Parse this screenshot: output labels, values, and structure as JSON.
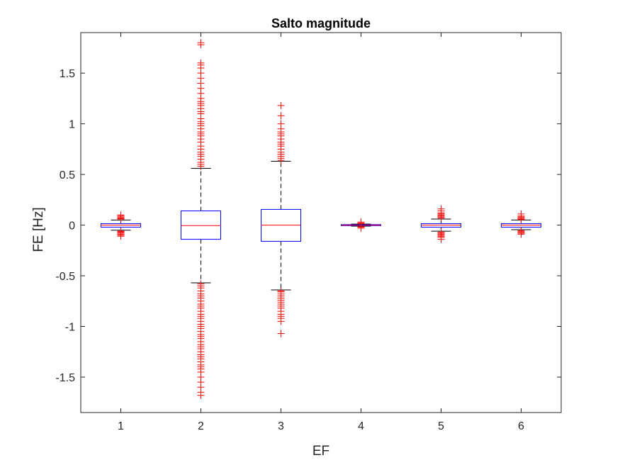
{
  "chart_data": {
    "type": "boxplot",
    "title": "Salto magnitude",
    "xlabel": "EF",
    "ylabel": "FE [Hz]",
    "categories": [
      "1",
      "2",
      "3",
      "4",
      "5",
      "6"
    ],
    "ylim": [
      -1.85,
      1.9
    ],
    "yticks": [
      -1.5,
      -1,
      -0.5,
      0,
      0.5,
      1,
      1.5
    ],
    "ytick_labels": [
      "-1.5",
      "-1",
      "-0.5",
      "0",
      "0.5",
      "1",
      "1.5"
    ],
    "grid": false,
    "colors": {
      "box": "#0000ff",
      "median": "#ff0000",
      "whisker": "#000000",
      "outlier": "#ff0000",
      "axis": "#262626"
    },
    "boxes": [
      {
        "category": "1",
        "q1": -0.02,
        "median": 0.0,
        "q3": 0.015,
        "whisker_low": -0.05,
        "whisker_high": 0.05,
        "outliers": [
          -0.11,
          -0.1,
          -0.09,
          -0.08,
          -0.07,
          -0.065,
          -0.06,
          0.06,
          0.065,
          0.07,
          0.08,
          0.09,
          0.1
        ]
      },
      {
        "category": "2",
        "q1": -0.14,
        "median": -0.005,
        "q3": 0.14,
        "whisker_low": -0.57,
        "whisker_high": 0.56,
        "outliers": [
          1.8,
          1.78,
          1.6,
          1.58,
          1.55,
          1.5,
          1.45,
          1.4,
          1.35,
          1.3,
          1.25,
          1.22,
          1.2,
          1.18,
          1.15,
          1.12,
          1.1,
          1.05,
          1.02,
          1.0,
          0.98,
          0.95,
          0.92,
          0.9,
          0.88,
          0.85,
          0.82,
          0.78,
          0.75,
          0.72,
          0.7,
          0.68,
          0.65,
          0.62,
          0.6,
          0.58,
          -0.58,
          -0.6,
          -0.62,
          -0.65,
          -0.68,
          -0.7,
          -0.72,
          -0.75,
          -0.78,
          -0.8,
          -0.82,
          -0.85,
          -0.88,
          -0.9,
          -0.92,
          -0.95,
          -0.98,
          -1.0,
          -1.02,
          -1.05,
          -1.08,
          -1.1,
          -1.12,
          -1.15,
          -1.18,
          -1.2,
          -1.22,
          -1.25,
          -1.28,
          -1.3,
          -1.32,
          -1.35,
          -1.38,
          -1.4,
          -1.42,
          -1.45,
          -1.5,
          -1.55,
          -1.6,
          -1.65,
          -1.68
        ]
      },
      {
        "category": "3",
        "q1": -0.16,
        "median": 0.0,
        "q3": 0.155,
        "whisker_low": -0.64,
        "whisker_high": 0.63,
        "outliers": [
          1.18,
          1.08,
          1.0,
          0.95,
          0.92,
          0.9,
          0.88,
          0.85,
          0.82,
          0.8,
          0.78,
          0.75,
          0.72,
          0.7,
          0.68,
          0.66,
          0.64,
          -0.65,
          -0.66,
          -0.68,
          -0.7,
          -0.72,
          -0.74,
          -0.76,
          -0.78,
          -0.8,
          -0.82,
          -0.85,
          -0.88,
          -0.9,
          -0.92,
          -0.95,
          -1.07
        ]
      },
      {
        "category": "4",
        "q1": -0.005,
        "median": 0.0,
        "q3": 0.005,
        "whisker_low": -0.01,
        "whisker_high": 0.01,
        "outliers": [
          -0.03,
          -0.02,
          -0.015,
          0.015,
          0.02,
          0.03
        ]
      },
      {
        "category": "5",
        "q1": -0.02,
        "median": 0.0,
        "q3": 0.015,
        "whisker_low": -0.06,
        "whisker_high": 0.06,
        "outliers": [
          -0.14,
          -0.12,
          -0.11,
          -0.1,
          -0.09,
          -0.08,
          -0.07,
          0.07,
          0.08,
          0.09,
          0.1,
          0.11,
          0.12,
          0.14,
          0.16
        ]
      },
      {
        "category": "6",
        "q1": -0.02,
        "median": 0.0,
        "q3": 0.015,
        "whisker_low": -0.045,
        "whisker_high": 0.05,
        "outliers": [
          -0.09,
          -0.08,
          -0.07,
          -0.06,
          -0.055,
          0.055,
          0.06,
          0.07,
          0.08,
          0.09,
          0.11
        ]
      }
    ]
  }
}
